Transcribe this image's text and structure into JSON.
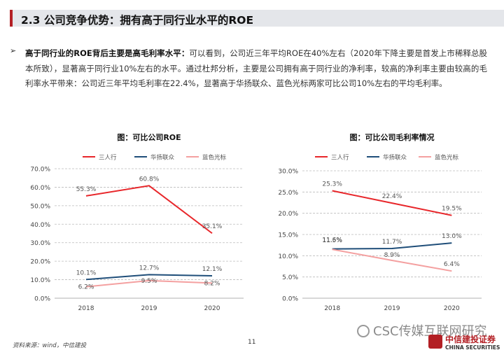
{
  "header": {
    "title": "2.3 公司竞争优势：拥有高于同行业水平的ROE"
  },
  "body": {
    "lead": "高于同行业的ROE背后主要是高毛利率水平：",
    "text": "可以看到，公司近三年平均ROE在40%左右（2020年下降主要是首发上市稀释总股本所致），显著高于同行业10%左右的水平。通过杜邦分析，主要是公司拥有高于同行业的净利率，较高的净利率主要由较高的毛利率水平带来：公司近三年平均毛利率在22.4%，显著高于华扬联众、蓝色光标两家可比公司10%左右的平均毛利率。"
  },
  "chart_data": [
    {
      "type": "line",
      "title": "图：可比公司ROE",
      "categories": [
        "2018",
        "2019",
        "2020"
      ],
      "ylim": [
        0,
        70
      ],
      "yticks": [
        "0.0%",
        "10.0%",
        "20.0%",
        "30.0%",
        "40.0%",
        "50.0%",
        "60.0%",
        "70.0%"
      ],
      "series": [
        {
          "name": "三人行",
          "values": [
            55.3,
            60.8,
            35.1
          ],
          "labels": [
            "55.3%",
            "60.8%",
            "35.1%"
          ],
          "color": "#e8262a"
        },
        {
          "name": "华扬联众",
          "values": [
            10.1,
            12.7,
            12.1
          ],
          "labels": [
            "10.1%",
            "12.7%",
            "12.1%"
          ],
          "color": "#1f4e79"
        },
        {
          "name": "蓝色光标",
          "values": [
            6.2,
            9.5,
            8.2
          ],
          "labels": [
            "6.2%",
            "9.5%",
            "8.2%"
          ],
          "color": "#f4a0a0"
        }
      ]
    },
    {
      "type": "line",
      "title": "图：可比公司毛利率情况",
      "categories": [
        "2018",
        "2019",
        "2020"
      ],
      "ylim": [
        0,
        30
      ],
      "yticks": [
        "0.0%",
        "5.0%",
        "10.0%",
        "15.0%",
        "20.0%",
        "25.0%",
        "30.0%"
      ],
      "series": [
        {
          "name": "三人行",
          "values": [
            25.3,
            22.4,
            19.5
          ],
          "labels": [
            "25.3%",
            "22.4%",
            "19.5%"
          ],
          "color": "#e8262a"
        },
        {
          "name": "华扬联众",
          "values": [
            11.6,
            11.7,
            13.0
          ],
          "labels": [
            "11.6%",
            "11.7%",
            "13.0%"
          ],
          "color": "#1f4e79"
        },
        {
          "name": "蓝色光标",
          "values": [
            11.5,
            8.9,
            6.4
          ],
          "labels": [
            "11.5%",
            "8.9%",
            "6.4%"
          ],
          "color": "#f4a0a0"
        }
      ]
    }
  ],
  "footer": {
    "source": "资料来源：wind，中信建投",
    "page": "11",
    "watermark": "CSC传媒互联网研究",
    "logo_cn": "中信建投证券",
    "logo_en": "CHINA SECURITIES"
  }
}
